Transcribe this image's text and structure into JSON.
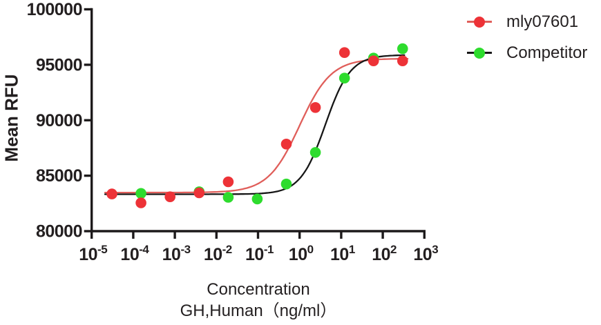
{
  "chart_data": {
    "type": "scatter",
    "title": "",
    "ylabel": "Mean RFU",
    "xlabel_lines": [
      "Concentration",
      "GH,Human（ng/ml）"
    ],
    "x_scale": "log10",
    "x_tick_base": "10",
    "x_tick_exponents": [
      -5,
      -4,
      -3,
      -2,
      -1,
      0,
      1,
      2,
      3
    ],
    "y_ticks": [
      100000,
      95000,
      90000,
      85000,
      80000
    ],
    "ylim": [
      80000,
      100000
    ],
    "xlim_log": [
      -5,
      3
    ],
    "grid": false,
    "legend_position": "top-right",
    "axis_color": "#1d1a1b",
    "series": [
      {
        "name": "mly07601",
        "marker_color": "#ed3237",
        "line_color": "#e05e5a",
        "points": [
          {
            "x": 3.072e-05,
            "y": 83350
          },
          {
            "x": 0.0001536,
            "y": 82550
          },
          {
            "x": 0.000768,
            "y": 83100
          },
          {
            "x": 0.00384,
            "y": 83450
          },
          {
            "x": 0.0192,
            "y": 84450
          },
          {
            "x": 0.48,
            "y": 87850
          },
          {
            "x": 2.4,
            "y": 91150
          },
          {
            "x": 12,
            "y": 96100
          },
          {
            "x": 60,
            "y": 95350
          },
          {
            "x": 300,
            "y": 95350
          }
        ],
        "fit": {
          "bottom": 83480,
          "top": 95560,
          "logEC50": 0.0,
          "hill": 1.15,
          "draw_log_range": [
            -4.68,
            2.6
          ]
        }
      },
      {
        "name": "Competitor",
        "marker_color": "#2edc2e",
        "line_color": "#161616",
        "points": [
          {
            "x": 0.0001536,
            "y": 83400
          },
          {
            "x": 0.00384,
            "y": 83550
          },
          {
            "x": 0.0192,
            "y": 83050
          },
          {
            "x": 0.096,
            "y": 82900
          },
          {
            "x": 0.48,
            "y": 84250
          },
          {
            "x": 2.4,
            "y": 87100
          },
          {
            "x": 12,
            "y": 93800
          },
          {
            "x": 60,
            "y": 95600
          },
          {
            "x": 300,
            "y": 96450
          }
        ],
        "fit": {
          "bottom": 83330,
          "top": 95890,
          "logEC50": 0.62,
          "hill": 1.45,
          "draw_log_range": [
            -4.68,
            2.52
          ]
        }
      }
    ]
  }
}
